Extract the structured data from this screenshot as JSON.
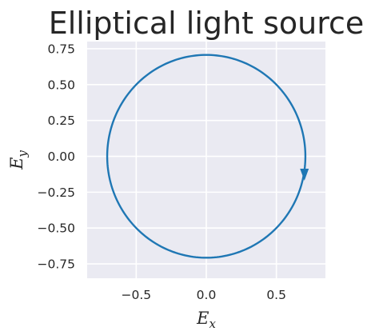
{
  "chart_data": {
    "type": "line",
    "title": "Elliptical light source",
    "xlabel": {
      "base": "E",
      "sub": "x"
    },
    "ylabel": {
      "base": "E",
      "sub": "y"
    },
    "xlim": [
      -0.85,
      0.85
    ],
    "ylim": [
      -0.85,
      0.8
    ],
    "xticks": [
      -0.5,
      0.0,
      0.5
    ],
    "xtick_labels": [
      "−0.5",
      "0.0",
      "0.5"
    ],
    "yticks": [
      0.75,
      0.5,
      0.25,
      0.0,
      -0.25,
      -0.5,
      -0.75
    ],
    "ytick_labels": [
      "0.75",
      "0.50",
      "0.25",
      "0.00",
      "−0.25",
      "−0.50",
      "−0.75"
    ],
    "grid": true,
    "background_color": "#eaeaf2",
    "grid_color": "#ffffff",
    "series": [
      {
        "shape": "circle",
        "center": [
          0.0,
          0.0
        ],
        "radius": 0.707,
        "direction": "clockwise",
        "arrow_at": [
          0.7,
          -0.12
        ],
        "color": "#1f77b4"
      }
    ]
  }
}
